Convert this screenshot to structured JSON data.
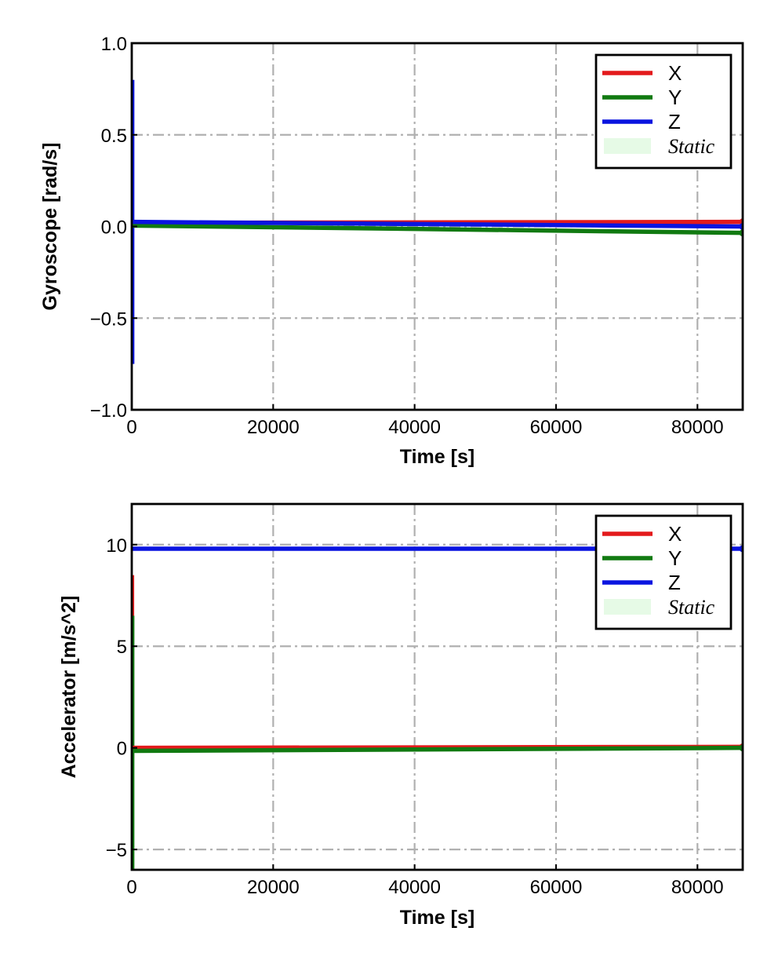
{
  "chart_data": [
    {
      "type": "line",
      "title": "",
      "xlabel": "Time [s]",
      "ylabel": "Gyroscope [rad/s]",
      "xlim": [
        0,
        86400
      ],
      "ylim": [
        -1.0,
        1.0
      ],
      "xticks": [
        0,
        20000,
        40000,
        60000,
        80000
      ],
      "xtick_labels": [
        "0",
        "20000",
        "40000",
        "60000",
        "80000"
      ],
      "yticks": [
        1.0,
        0.5,
        0.0,
        -0.5,
        -1.0
      ],
      "ytick_labels": [
        "1.0",
        "0.5",
        "0.0",
        "−0.5",
        "−1.0"
      ],
      "grid": true,
      "legend_position": "top-right",
      "legend": [
        "X",
        "Y",
        "Z",
        "Static"
      ],
      "series": [
        {
          "name": "X",
          "color": "#e31a1c",
          "x": [
            0,
            86400
          ],
          "y": [
            0.02,
            0.025
          ]
        },
        {
          "name": "Y",
          "color": "#117a11",
          "x": [
            0,
            86400
          ],
          "y": [
            0.005,
            -0.035
          ]
        },
        {
          "name": "Z",
          "color": "#0a14e0",
          "x": [
            0,
            86400
          ],
          "y": [
            0.025,
            0.0
          ]
        }
      ],
      "spikes": [
        {
          "series": "Z",
          "x": 150,
          "ymin": -0.75,
          "ymax": 0.8
        }
      ]
    },
    {
      "type": "line",
      "title": "",
      "xlabel": "Time [s]",
      "ylabel": "Accelerator [m/s^2]",
      "xlim": [
        0,
        86400
      ],
      "ylim": [
        -6,
        12
      ],
      "xticks": [
        0,
        20000,
        40000,
        60000,
        80000
      ],
      "xtick_labels": [
        "0",
        "20000",
        "40000",
        "60000",
        "80000"
      ],
      "yticks": [
        10,
        5,
        0,
        -5
      ],
      "ytick_labels": [
        "10",
        "5",
        "0",
        "−5"
      ],
      "grid": true,
      "legend_position": "top-right",
      "legend": [
        "X",
        "Y",
        "Z",
        "Static"
      ],
      "series": [
        {
          "name": "X",
          "color": "#e31a1c",
          "x": [
            0,
            86400
          ],
          "y": [
            0.0,
            0.05
          ]
        },
        {
          "name": "Y",
          "color": "#117a11",
          "x": [
            0,
            86400
          ],
          "y": [
            -0.15,
            0.0
          ]
        },
        {
          "name": "Z",
          "color": "#0a14e0",
          "x": [
            0,
            86400
          ],
          "y": [
            9.8,
            9.8
          ]
        }
      ],
      "spikes": [
        {
          "series": "X",
          "x": 120,
          "ymin": -0.5,
          "ymax": 8.5
        },
        {
          "series": "Y",
          "x": 150,
          "ymin": -6,
          "ymax": 6.5
        }
      ]
    }
  ]
}
